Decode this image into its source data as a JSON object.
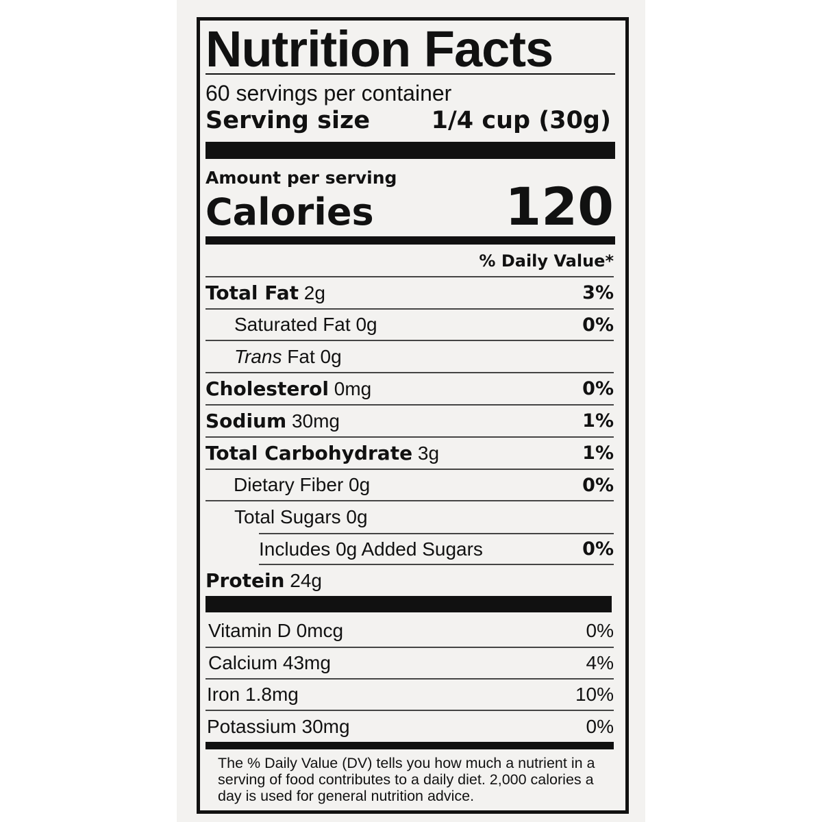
{
  "header": {
    "title": "Nutrition Facts",
    "servings": "60 servings per container",
    "serving_size_label": "Serving size",
    "serving_size_value": "1/4 cup (30g)"
  },
  "calories": {
    "amount_per_serving": "Amount per serving",
    "label": "Calories",
    "value": "120"
  },
  "daily_value_header": "% Daily Value*",
  "nutrients": [
    {
      "name": "Total Fat",
      "amount": "2g",
      "dv": "3%"
    },
    {
      "name": "Saturated Fat",
      "amount": "0g",
      "dv": "0%"
    },
    {
      "name_italic": "Trans",
      "name": "Fat",
      "amount": "0g"
    },
    {
      "name": "Cholesterol",
      "amount": "0mg",
      "dv": "0%"
    },
    {
      "name": "Sodium",
      "amount": "30mg",
      "dv": "1%"
    },
    {
      "name": "Total Carbohydrate",
      "amount": "3g",
      "dv": "1%"
    },
    {
      "name": "Dietary Fiber",
      "amount": "0g",
      "dv": "0%"
    },
    {
      "name": "Total Sugars",
      "amount": "0g"
    },
    {
      "name": "Includes 0g Added Sugars",
      "dv": "0%"
    },
    {
      "name": "Protein",
      "amount": "24g"
    }
  ],
  "vitamins": [
    {
      "name": "Vitamin D 0mcg",
      "dv": "0%"
    },
    {
      "name": "Calcium 43mg",
      "dv": "4%"
    },
    {
      "name": "Iron 1.8mg",
      "dv": "10%"
    },
    {
      "name": "Potassium 30mg",
      "dv": "0%"
    }
  ],
  "footnote": "The % Daily Value (DV) tells you how much a nutrient in a serving of food contributes to a daily diet. 2,000 calories a day is used for general nutrition advice."
}
